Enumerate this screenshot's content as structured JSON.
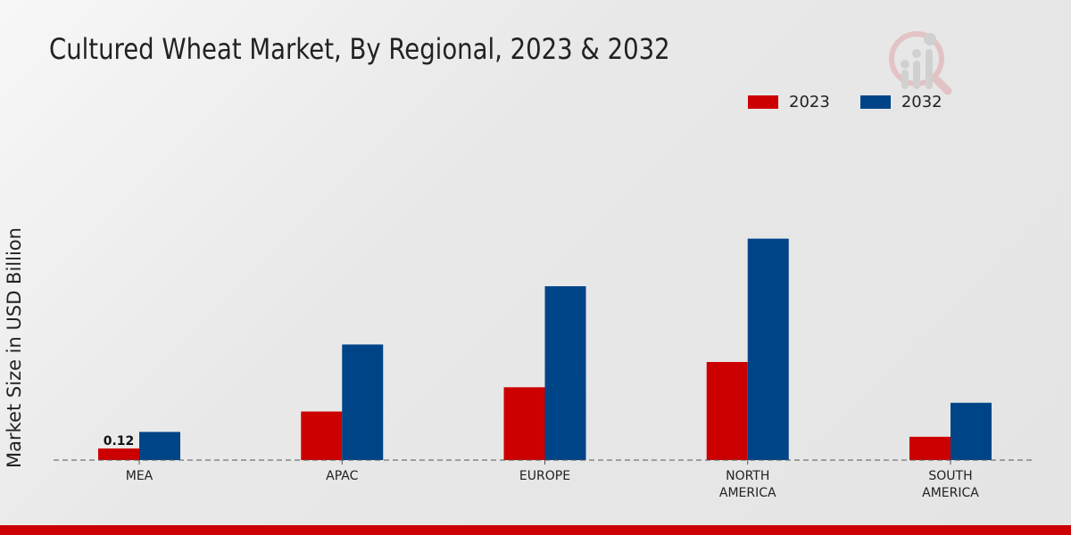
{
  "chart_data": {
    "type": "bar",
    "title": "Cultured Wheat Market, By Regional, 2023 & 2032",
    "xlabel": "",
    "ylabel": "Market Size in USD Billion",
    "categories": [
      [
        "MEA"
      ],
      [
        "APAC"
      ],
      [
        "EUROPE"
      ],
      [
        "NORTH",
        "AMERICA"
      ],
      [
        "SOUTH",
        "AMERICA"
      ]
    ],
    "series": [
      {
        "name": "2023",
        "color": "#cc0000",
        "values": [
          0.12,
          0.5,
          0.75,
          1.01,
          0.24
        ]
      },
      {
        "name": "2032",
        "color": "#004488",
        "values": [
          0.29,
          1.19,
          1.79,
          2.28,
          0.59
        ]
      }
    ],
    "data_labels": [
      {
        "series": 0,
        "index": 0,
        "text": "0.12"
      }
    ],
    "ylim": [
      0,
      2.8
    ],
    "grid": false,
    "legend_position": "top-right"
  }
}
